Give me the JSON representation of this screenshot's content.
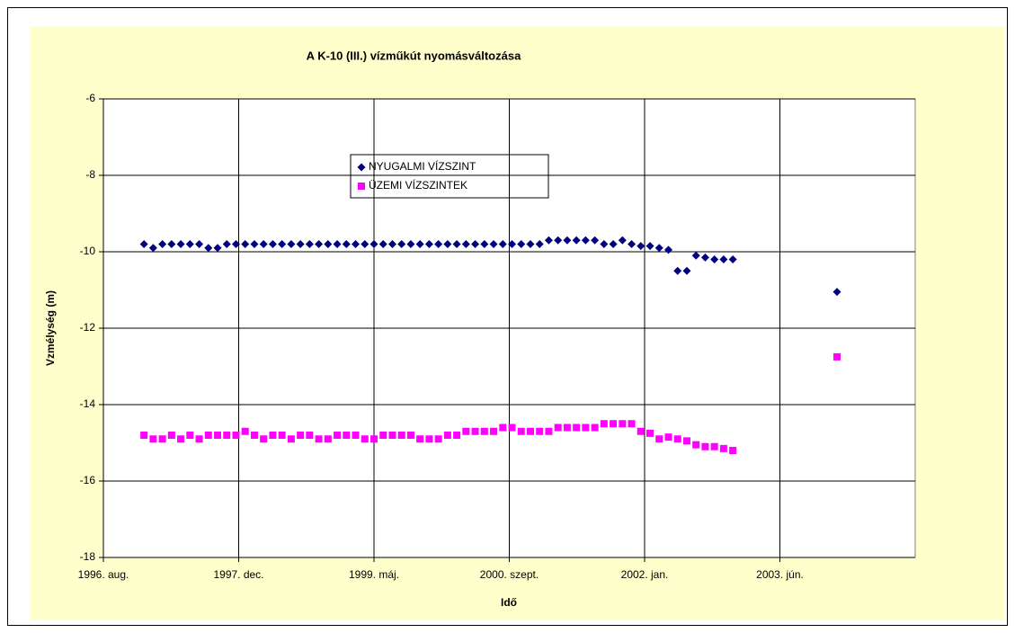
{
  "chart_data": {
    "type": "scatter",
    "title": "A K-10 (III.) vízműkút nyomásváltozása",
    "x_label": "Idő",
    "y_label": "Vzmélység (m)",
    "xlim": [
      35278,
      38278
    ],
    "xticks": [
      {
        "value": 35278,
        "label": "1996. aug."
      },
      {
        "value": 35778,
        "label": "1997. dec."
      },
      {
        "value": 36278,
        "label": "1999. máj."
      },
      {
        "value": 36778,
        "label": "2000. szept."
      },
      {
        "value": 37278,
        "label": "2002. jan."
      },
      {
        "value": 37778,
        "label": "2003. jún."
      }
    ],
    "ylim": [
      -18,
      -6
    ],
    "yticks": [
      -18,
      -16,
      -14,
      -12,
      -10,
      -8,
      -6
    ],
    "grid": true,
    "x": [
      35428,
      35462,
      35496,
      35530,
      35564,
      35598,
      35632,
      35666,
      35700,
      35734,
      35768,
      35802,
      35836,
      35870,
      35904,
      35938,
      35972,
      36006,
      36040,
      36074,
      36108,
      36142,
      36176,
      36210,
      36244,
      36278,
      36312,
      36346,
      36380,
      36414,
      36448,
      36482,
      36516,
      36550,
      36584,
      36618,
      36652,
      36686,
      36720,
      36754,
      36788,
      36822,
      36856,
      36890,
      36924,
      36958,
      36992,
      37026,
      37060,
      37094,
      37128,
      37162,
      37196,
      37230,
      37264,
      37298,
      37332,
      37366,
      37400,
      37434,
      37468,
      37502,
      37536,
      37570,
      37604,
      37989
    ],
    "series": [
      {
        "name": "NYUGALMI VÍZSZINT",
        "color": "#000080",
        "marker": "diamond",
        "values": [
          -9.8,
          -9.9,
          -9.8,
          -9.8,
          -9.8,
          -9.8,
          -9.8,
          -9.9,
          -9.9,
          -9.8,
          -9.8,
          -9.8,
          -9.8,
          -9.8,
          -9.8,
          -9.8,
          -9.8,
          -9.8,
          -9.8,
          -9.8,
          -9.8,
          -9.8,
          -9.8,
          -9.8,
          -9.8,
          -9.8,
          -9.8,
          -9.8,
          -9.8,
          -9.8,
          -9.8,
          -9.8,
          -9.8,
          -9.8,
          -9.8,
          -9.8,
          -9.8,
          -9.8,
          -9.8,
          -9.8,
          -9.8,
          -9.8,
          -9.8,
          -9.8,
          -9.7,
          -9.7,
          -9.7,
          -9.7,
          -9.7,
          -9.7,
          -9.8,
          -9.8,
          -9.7,
          -9.8,
          -9.85,
          -9.85,
          -9.9,
          -9.95,
          -10.5,
          -10.5,
          -10.1,
          -10.15,
          -10.2,
          -10.2,
          -10.2,
          -11.05
        ]
      },
      {
        "name": "ÜZEMI VÍZSZINTEK",
        "color": "#ff00ff",
        "marker": "square",
        "values": [
          -14.8,
          -14.9,
          -14.9,
          -14.8,
          -14.9,
          -14.8,
          -14.9,
          -14.8,
          -14.8,
          -14.8,
          -14.8,
          -14.7,
          -14.8,
          -14.9,
          -14.8,
          -14.8,
          -14.9,
          -14.8,
          -14.8,
          -14.9,
          -14.9,
          -14.8,
          -14.8,
          -14.8,
          -14.9,
          -14.9,
          -14.8,
          -14.8,
          -14.8,
          -14.8,
          -14.9,
          -14.9,
          -14.9,
          -14.8,
          -14.8,
          -14.7,
          -14.7,
          -14.7,
          -14.7,
          -14.6,
          -14.6,
          -14.7,
          -14.7,
          -14.7,
          -14.7,
          -14.6,
          -14.6,
          -14.6,
          -14.6,
          -14.6,
          -14.5,
          -14.5,
          -14.5,
          -14.5,
          -14.7,
          -14.75,
          -14.9,
          -14.85,
          -14.9,
          -14.95,
          -15.05,
          -15.1,
          -15.1,
          -15.15,
          -15.2,
          -12.75
        ]
      }
    ]
  }
}
